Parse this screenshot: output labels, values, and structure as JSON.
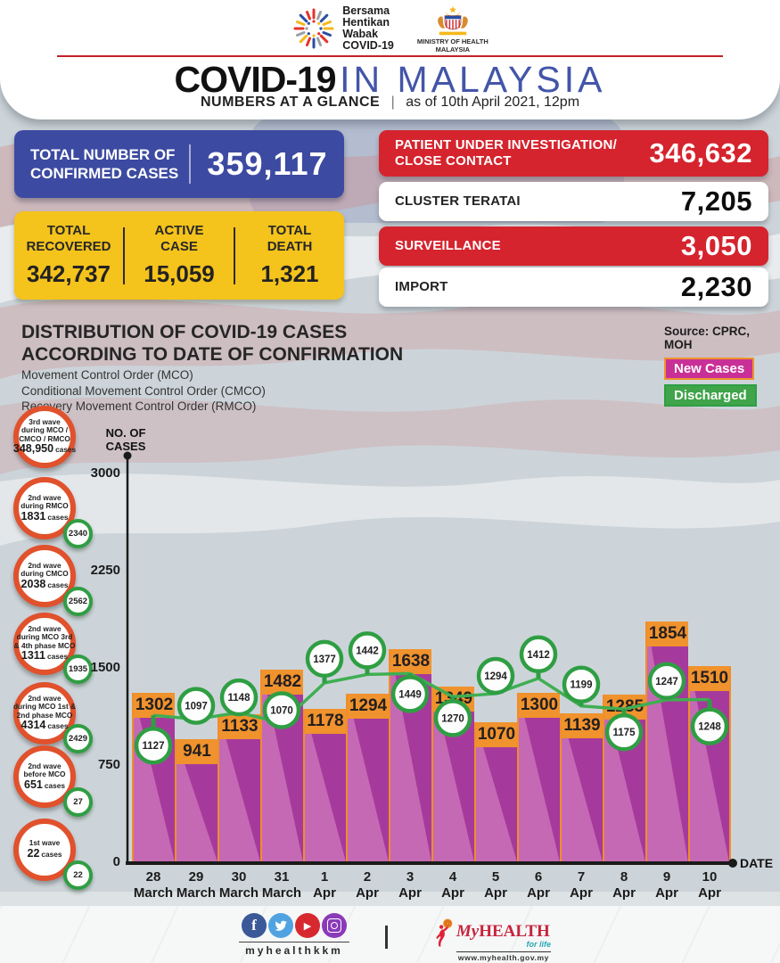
{
  "header": {
    "campaign_logo_lines": [
      "Bersama",
      "Hentikan",
      "Wabak",
      "COVID-19"
    ],
    "ministry_lines": [
      "MINISTRY OF HEALTH",
      "MALAYSIA"
    ],
    "title_black": "COVID-19",
    "title_blue": "IN MALAYSIA",
    "subtitle_bold": "NUMBERS AT A GLANCE",
    "subtitle_sep": "|",
    "subtitle_date": "as of 10th April 2021, 12pm"
  },
  "stats": {
    "confirmed": {
      "label_lines": [
        "TOTAL NUMBER OF",
        "CONFIRMED CASES"
      ],
      "value": "359,117"
    },
    "yellow": [
      {
        "label_lines": [
          "TOTAL",
          "RECOVERED"
        ],
        "value": "342,737"
      },
      {
        "label_lines": [
          "ACTIVE",
          "CASE"
        ],
        "value": "15,059"
      },
      {
        "label_lines": [
          "TOTAL",
          "DEATH"
        ],
        "value": "1,321"
      }
    ],
    "right_rows": [
      {
        "style": "red",
        "label_lines": [
          "PATIENT UNDER INVESTIGATION/",
          "CLOSE CONTACT"
        ],
        "value": "346,632"
      },
      {
        "style": "white",
        "label_lines": [
          "CLUSTER TERATAI"
        ],
        "value": "7,205"
      },
      {
        "style": "red",
        "label_lines": [
          "SURVEILLANCE"
        ],
        "value": "3,050"
      },
      {
        "style": "white",
        "label_lines": [
          "IMPORT"
        ],
        "value": "2,230"
      }
    ]
  },
  "section": {
    "title_lines": [
      "DISTRIBUTION OF COVID-19 CASES",
      "ACCORDING TO DATE OF CONFIRMATION"
    ],
    "subtitle_lines": [
      "Movement Control Order (MCO)",
      "Conditional Movement Control Order (CMCO)",
      "Recovery Movement Control Order (RMCO)"
    ],
    "source": "Source: CPRC, MOH",
    "legend": [
      {
        "label": "New Cases",
        "color": "#c93097",
        "border": "#f0922d"
      },
      {
        "label": "Discharged",
        "color": "#3fa44a"
      }
    ]
  },
  "waves": [
    {
      "lines": [
        "3rd wave",
        "during MCO /",
        "CMCO / RMCO"
      ],
      "value": "348,950",
      "suffix": "cases",
      "badge": null
    },
    {
      "lines": [
        "2nd wave",
        "during RMCO"
      ],
      "value": "1831",
      "suffix": "cases",
      "badge": "2340"
    },
    {
      "lines": [
        "2nd wave",
        "during CMCO"
      ],
      "value": "2038",
      "suffix": "cases",
      "badge": "2562"
    },
    {
      "lines": [
        "2nd wave",
        "during MCO 3rd",
        "& 4th phase MCO"
      ],
      "value": "1311",
      "suffix": "cases",
      "badge": "1935"
    },
    {
      "lines": [
        "2nd wave",
        "during MCO 1st &",
        "2nd phase MCO"
      ],
      "value": "4314",
      "suffix": "cases",
      "badge": "2429"
    },
    {
      "lines": [
        "2nd wave",
        "before MCO"
      ],
      "value": "651",
      "suffix": "cases",
      "badge": "27"
    },
    {
      "lines": [
        "1st wave"
      ],
      "value": "22",
      "suffix": "cases",
      "badge": "22"
    }
  ],
  "chart_data": {
    "type": "bar",
    "title": "DISTRIBUTION OF COVID-19 CASES ACCORDING TO DATE OF CONFIRMATION",
    "categories": [
      [
        "28",
        "March"
      ],
      [
        "29",
        "March"
      ],
      [
        "30",
        "March"
      ],
      [
        "31",
        "March"
      ],
      [
        "1",
        "Apr"
      ],
      [
        "2",
        "Apr"
      ],
      [
        "3",
        "Apr"
      ],
      [
        "4",
        "Apr"
      ],
      [
        "5",
        "Apr"
      ],
      [
        "6",
        "Apr"
      ],
      [
        "7",
        "Apr"
      ],
      [
        "8",
        "Apr"
      ],
      [
        "9",
        "Apr"
      ],
      [
        "10",
        "Apr"
      ]
    ],
    "series": [
      {
        "name": "New Cases",
        "type": "bar",
        "color": "#a63a9c",
        "values": [
          1302,
          941,
          1133,
          1482,
          1178,
          1294,
          1638,
          1349,
          1070,
          1300,
          1139,
          1285,
          1854,
          1510
        ]
      },
      {
        "name": "Discharged",
        "type": "line",
        "color": "#3fae52",
        "values": [
          1127,
          1097,
          1148,
          1070,
          1377,
          1442,
          1449,
          1270,
          1294,
          1412,
          1199,
          1175,
          1247,
          1248
        ]
      }
    ],
    "ylabel": "NO. OF CASES",
    "xlabel": "DATE",
    "yticks": [
      0,
      750,
      1500,
      2250,
      3000
    ],
    "ylim": [
      0,
      3150
    ],
    "grid": false,
    "legend_position": "top-right"
  },
  "footer": {
    "social_icons": [
      "facebook-icon",
      "twitter-icon",
      "youtube-icon",
      "instagram-icon"
    ],
    "handle": "myhealthkkm",
    "brand_my": "My",
    "brand_rest": "HEALTH",
    "tagline": "for life",
    "url": "www.myhealth.gov.my"
  }
}
